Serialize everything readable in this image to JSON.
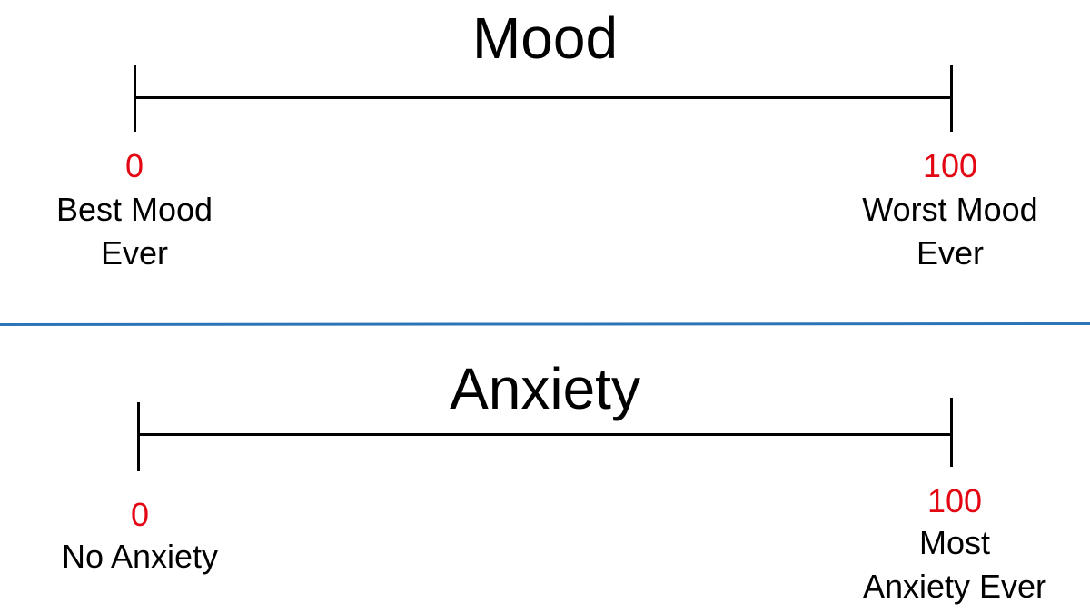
{
  "colors": {
    "value_labels": "#e30613",
    "divider": "#2e75b6",
    "text": "#000000"
  },
  "mood": {
    "title": "Mood",
    "min_value": "0",
    "max_value": "100",
    "min_label": "Best Mood\nEver",
    "max_label": "Worst Mood\nEver"
  },
  "anxiety": {
    "title": "Anxiety",
    "min_value": "0",
    "max_value": "100",
    "min_label": "No Anxiety",
    "max_label": "Most\nAnxiety Ever"
  }
}
